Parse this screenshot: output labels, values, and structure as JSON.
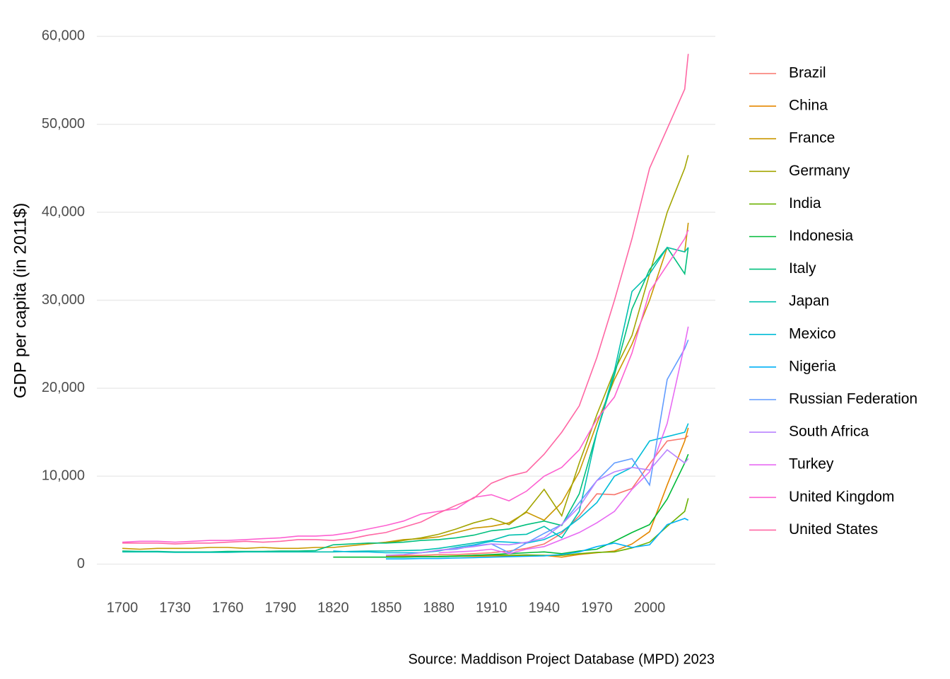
{
  "chart_data": {
    "type": "line",
    "y_label": "GDP per capita (in 2011$)",
    "caption": "Source: Maddison Project Database (MPD) 2023",
    "x": [
      1700,
      1710,
      1720,
      1730,
      1740,
      1750,
      1760,
      1770,
      1780,
      1790,
      1800,
      1810,
      1820,
      1830,
      1840,
      1850,
      1860,
      1870,
      1880,
      1890,
      1900,
      1910,
      1920,
      1930,
      1940,
      1950,
      1960,
      1970,
      1980,
      1990,
      2000,
      2010,
      2020,
      2022
    ],
    "xlim": [
      1685.5,
      2037.4
    ],
    "xticks": [
      1700,
      1730,
      1760,
      1790,
      1820,
      1850,
      1880,
      1910,
      1940,
      1970,
      2000
    ],
    "ylim": [
      -3000,
      63000
    ],
    "yticks": [
      0,
      {
        "value": 10000,
        "label": "10,000"
      },
      {
        "value": 20000,
        "label": "20,000"
      },
      {
        "value": 30000,
        "label": "30,000"
      },
      {
        "value": 40000,
        "label": "40,000"
      },
      {
        "value": 50000,
        "label": "50,000"
      },
      {
        "value": 60000,
        "label": "60,000"
      }
    ],
    "grid": true,
    "legend": "right",
    "series": [
      {
        "name": "Brazil",
        "color": "#F8766D",
        "values": [
          null,
          null,
          null,
          null,
          null,
          null,
          null,
          null,
          null,
          null,
          null,
          null,
          null,
          null,
          null,
          1000,
          1000,
          1000,
          1100,
          1100,
          1200,
          1300,
          1500,
          1800,
          2300,
          3500,
          5500,
          8000,
          7900,
          8600,
          11400,
          14000,
          14300,
          14600
        ]
      },
      {
        "name": "China",
        "color": "#E58700",
        "values": [
          null,
          null,
          null,
          null,
          null,
          null,
          null,
          null,
          null,
          null,
          null,
          null,
          null,
          null,
          null,
          900,
          900,
          880,
          900,
          900,
          900,
          950,
          950,
          1000,
          1000,
          800,
          1100,
          1300,
          1500,
          2300,
          3700,
          9000,
          14000,
          15500
        ]
      },
      {
        "name": "France",
        "color": "#C99800",
        "values": [
          1800,
          1700,
          1800,
          1800,
          1800,
          1900,
          1900,
          1800,
          1900,
          1800,
          1800,
          1900,
          1900,
          2100,
          2300,
          2500,
          2800,
          2900,
          3100,
          3600,
          4100,
          4300,
          4700,
          5900,
          5000,
          7000,
          10500,
          16000,
          21000,
          25000,
          30000,
          36000,
          35500,
          38800
        ]
      },
      {
        "name": "Germany",
        "color": "#A3A500",
        "values": [
          null,
          null,
          null,
          null,
          null,
          null,
          null,
          null,
          null,
          null,
          null,
          null,
          null,
          null,
          null,
          2400,
          2700,
          3000,
          3400,
          4000,
          4700,
          5200,
          4500,
          6000,
          8500,
          5500,
          11500,
          17000,
          22000,
          26000,
          33000,
          40000,
          45000,
          46500
        ]
      },
      {
        "name": "India",
        "color": "#6BB100",
        "values": [
          null,
          null,
          null,
          null,
          null,
          null,
          null,
          null,
          null,
          null,
          null,
          null,
          null,
          null,
          null,
          null,
          null,
          null,
          900,
          950,
          1000,
          1050,
          1000,
          1050,
          1000,
          1000,
          1200,
          1350,
          1400,
          1850,
          2500,
          4300,
          6000,
          7500
        ]
      },
      {
        "name": "Indonesia",
        "color": "#00BA38",
        "values": [
          null,
          null,
          null,
          null,
          null,
          null,
          null,
          null,
          null,
          null,
          null,
          null,
          800,
          800,
          800,
          800,
          800,
          850,
          850,
          900,
          1000,
          1100,
          1200,
          1300,
          1400,
          1200,
          1500,
          1700,
          2600,
          3600,
          4500,
          7400,
          11500,
          12500
        ]
      },
      {
        "name": "Italy",
        "color": "#00BF7D",
        "values": [
          1500,
          1450,
          1450,
          1400,
          1400,
          1400,
          1450,
          1450,
          1450,
          1500,
          1500,
          1550,
          2200,
          2300,
          2400,
          2400,
          2500,
          2700,
          2800,
          3000,
          3300,
          3800,
          4000,
          4500,
          4900,
          4400,
          8000,
          15000,
          21500,
          29000,
          33500,
          36000,
          33000,
          36000
        ]
      },
      {
        "name": "Japan",
        "color": "#00C0AF",
        "values": [
          1400,
          1400,
          1400,
          1350,
          1350,
          1350,
          1350,
          1400,
          1400,
          1400,
          1400,
          1400,
          1400,
          1450,
          1500,
          1500,
          1550,
          1600,
          1800,
          2100,
          2400,
          2700,
          3300,
          3400,
          4300,
          3000,
          6000,
          15000,
          22000,
          31000,
          33000,
          36000,
          35500,
          36000
        ]
      },
      {
        "name": "Mexico",
        "color": "#00BCD8",
        "values": [
          null,
          null,
          null,
          null,
          null,
          null,
          null,
          null,
          null,
          null,
          null,
          null,
          1500,
          1400,
          1400,
          1300,
          1300,
          1300,
          1500,
          1900,
          2200,
          2600,
          2500,
          2400,
          2800,
          3700,
          5200,
          7000,
          10000,
          11000,
          14000,
          14500,
          15000,
          16000
        ]
      },
      {
        "name": "Nigeria",
        "color": "#00B0F6",
        "values": [
          null,
          null,
          null,
          null,
          null,
          null,
          null,
          null,
          null,
          null,
          null,
          null,
          null,
          null,
          null,
          600,
          600,
          650,
          650,
          700,
          750,
          800,
          850,
          900,
          950,
          1100,
          1400,
          2000,
          2400,
          1900,
          2200,
          4500,
          5200,
          5000
        ]
      },
      {
        "name": "Russian Federation",
        "color": "#619CFF",
        "values": [
          null,
          null,
          null,
          null,
          null,
          null,
          null,
          null,
          null,
          null,
          null,
          null,
          null,
          null,
          null,
          null,
          null,
          null,
          1600,
          1700,
          2100,
          2300,
          1300,
          2400,
          3500,
          4500,
          7000,
          9500,
          11500,
          12000,
          9000,
          21000,
          24500,
          25500
        ]
      },
      {
        "name": "South Africa",
        "color": "#B983FF",
        "values": [
          null,
          null,
          null,
          null,
          null,
          null,
          null,
          null,
          null,
          null,
          null,
          null,
          null,
          null,
          null,
          1000,
          1100,
          1300,
          1600,
          1800,
          2000,
          2300,
          2200,
          2500,
          3000,
          4500,
          6500,
          9500,
          10500,
          11000,
          10700,
          13000,
          11500,
          12000
        ]
      },
      {
        "name": "Turkey",
        "color": "#E76BF3",
        "values": [
          null,
          null,
          null,
          null,
          null,
          null,
          null,
          null,
          null,
          null,
          null,
          null,
          null,
          null,
          null,
          null,
          null,
          null,
          1300,
          1400,
          1500,
          1700,
          1200,
          1700,
          2000,
          2800,
          3600,
          4700,
          6000,
          8500,
          10500,
          16000,
          25000,
          27000
        ]
      },
      {
        "name": "United Kingdom",
        "color": "#FD61D1",
        "values": [
          2500,
          2600,
          2600,
          2500,
          2600,
          2700,
          2700,
          2800,
          2900,
          3000,
          3200,
          3200,
          3300,
          3600,
          4000,
          4400,
          4900,
          5700,
          6000,
          6300,
          7600,
          7900,
          7200,
          8300,
          10000,
          11000,
          13000,
          16500,
          19000,
          24000,
          31000,
          34000,
          37000,
          38000
        ]
      },
      {
        "name": "United States",
        "color": "#FF67A4",
        "values": [
          2400,
          2400,
          2400,
          2300,
          2400,
          2400,
          2500,
          2600,
          2500,
          2600,
          2800,
          2800,
          2700,
          2900,
          3300,
          3600,
          4200,
          4800,
          5800,
          6700,
          7500,
          9200,
          10000,
          10500,
          12500,
          15000,
          18000,
          23500,
          30000,
          37000,
          45000,
          49500,
          54000,
          58000
        ]
      }
    ]
  }
}
